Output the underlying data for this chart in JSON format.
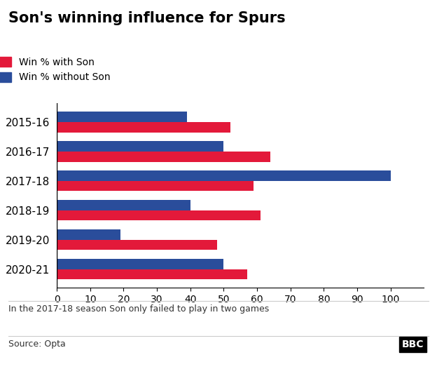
{
  "title": "Son's winning influence for Spurs",
  "seasons": [
    "2015-16",
    "2016-17",
    "2017-18",
    "2018-19",
    "2019-20",
    "2020-21"
  ],
  "win_with_son": [
    52,
    64,
    59,
    61,
    48,
    57
  ],
  "win_without_son": [
    39,
    50,
    100,
    40,
    19,
    50
  ],
  "color_with": "#e3193a",
  "color_without": "#2a4d9b",
  "legend_with": "Win % with Son",
  "legend_without": "Win % without Son",
  "xlim": [
    0,
    110
  ],
  "xticks": [
    0,
    10,
    20,
    30,
    40,
    50,
    60,
    70,
    80,
    90,
    100
  ],
  "note": "In the 2017-18 season Son only failed to play in two games",
  "source": "Source: Opta",
  "bbc_logo": "BBC",
  "bar_height": 0.35,
  "figsize": [
    6.24,
    5.26
  ],
  "dpi": 100
}
